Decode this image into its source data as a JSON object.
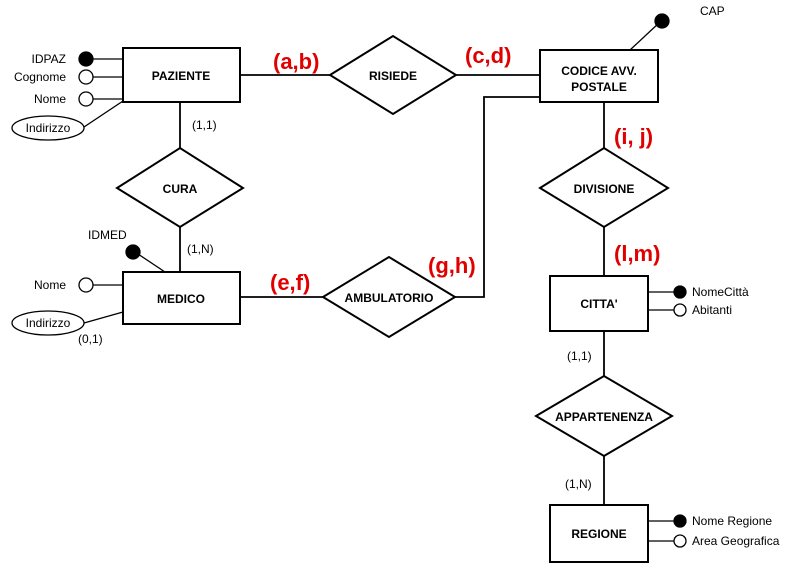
{
  "colors": {
    "line": "#000000",
    "background": "#ffffff",
    "cardinality_highlight": "#e00000"
  },
  "entities": {
    "paziente": "PAZIENTE",
    "medico": "MEDICO",
    "codice_line1": "CODICE AVV.",
    "codice_line2": "POSTALE",
    "citta": "CITTA'",
    "regione": "REGIONE"
  },
  "relationships": {
    "risiede": "RISIEDE",
    "cura": "CURA",
    "ambulatorio": "AMBULATORIO",
    "divisione": "DIVISIONE",
    "appartenenza": "APPARTENENZA"
  },
  "attributes": {
    "paziente": {
      "key": "IDPAZ",
      "cognome": "Cognome",
      "nome": "Nome",
      "indirizzo": "Indirizzo"
    },
    "medico": {
      "key": "IDMED",
      "nome": "Nome",
      "indirizzo": "Indirizzo",
      "indirizzo_card": "(0,1)"
    },
    "codice": {
      "key": "CAP"
    },
    "citta": {
      "key": "NomeCittà",
      "abitanti": "Abitanti"
    },
    "regione": {
      "key": "Nome Regione",
      "area": "Area Geografica"
    }
  },
  "cardinalities": {
    "paziente_cura": "(1,1)",
    "medico_cura": "(1,N)",
    "citta_appartenenza": "(1,1)",
    "regione_appartenenza": "(1,N)",
    "paziente_risiede": "(a,b)",
    "codice_risiede": "(c,d)",
    "medico_ambulatorio": "(e,f)",
    "codice_ambulatorio": "(g,h)",
    "codice_divisione": "(i, j)",
    "citta_divisione": "(l,m)"
  }
}
